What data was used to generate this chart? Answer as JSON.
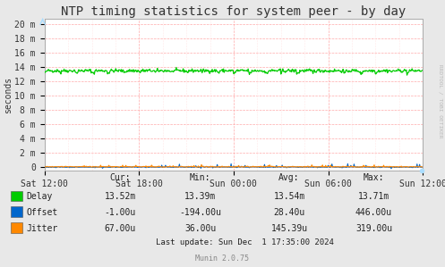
{
  "title": "NTP timing statistics for system peer - by day",
  "ylabel": "seconds",
  "bg_color": "#e8e8e8",
  "plot_bg_color": "#ffffff",
  "grid_color": "#ffaaaa",
  "grid_minor_color": "#ffe8e8",
  "border_color": "#aaaaaa",
  "ytick_labels": [
    "0",
    "2 m",
    "4 m",
    "6 m",
    "8 m",
    "10 m",
    "12 m",
    "14 m",
    "16 m",
    "18 m",
    "20 m"
  ],
  "ytick_values": [
    0,
    0.002,
    0.004,
    0.006,
    0.008,
    0.01,
    0.012,
    0.014,
    0.016,
    0.018,
    0.02
  ],
  "ylim": [
    -0.0005,
    0.0208
  ],
  "xtick_labels": [
    "Sat 12:00",
    "Sat 18:00",
    "Sun 00:00",
    "Sun 06:00",
    "Sun 12:00"
  ],
  "delay_color": "#00cc00",
  "offset_color": "#0066cc",
  "jitter_color": "#ff8800",
  "delay_value": 0.01352,
  "num_points": 600,
  "legend_labels": [
    "Delay",
    "Offset",
    "Jitter"
  ],
  "stats_cur": [
    "13.52m",
    "-1.00u",
    "67.00u"
  ],
  "stats_min": [
    "13.39m",
    "-194.00u",
    "36.00u"
  ],
  "stats_avg": [
    "13.54m",
    "28.40u",
    "145.39u"
  ],
  "stats_max": [
    "13.71m",
    "446.00u",
    "319.00u"
  ],
  "last_update": "Last update: Sun Dec  1 17:35:00 2024",
  "munin_version": "Munin 2.0.75",
  "rrdtool_label": "RRDTOOL / TOBI OETIKER",
  "title_fontsize": 10,
  "axis_fontsize": 7,
  "stats_fontsize": 7
}
